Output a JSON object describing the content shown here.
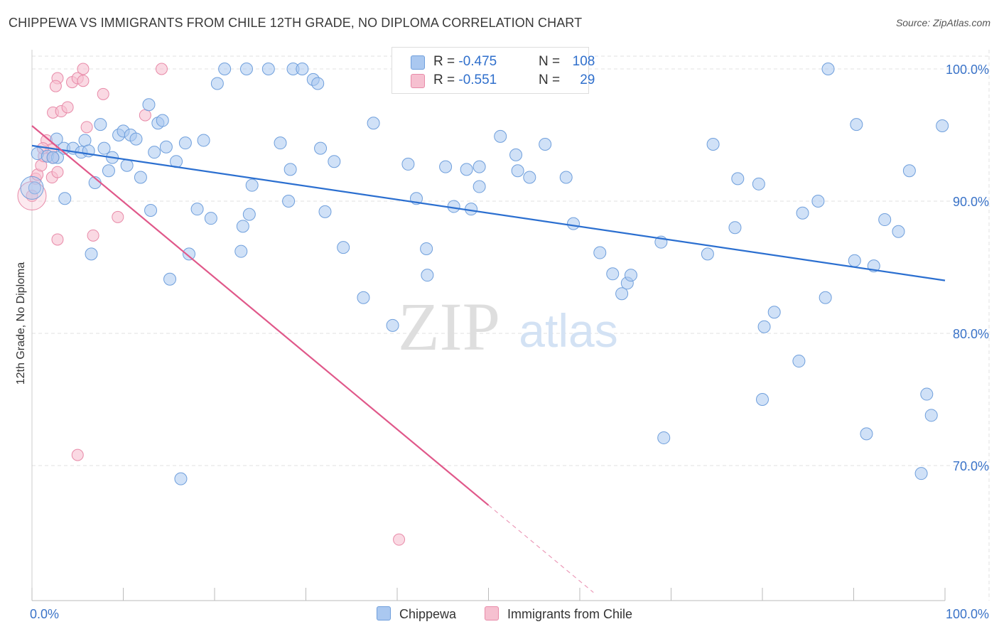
{
  "title": "CHIPPEWA VS IMMIGRANTS FROM CHILE 12TH GRADE, NO DIPLOMA CORRELATION CHART",
  "source": "Source: ZipAtlas.com",
  "watermark": {
    "zip": "ZIP",
    "atlas": "atlas"
  },
  "colors": {
    "blue_fill": "#aac8f0",
    "blue_stroke": "#6f9fdc",
    "blue_line": "#2b6fd0",
    "pink_fill": "#f6c0d0",
    "pink_stroke": "#e88aa8",
    "pink_line": "#e0588a",
    "axis_text": "#3a73c8",
    "grid": "#e2e2e2"
  },
  "legend_top": {
    "rows": [
      {
        "r_label": "R = ",
        "r_value": "-0.475",
        "n_label": "N = ",
        "n_value": "108"
      },
      {
        "r_label": "R = ",
        "r_value": "-0.551",
        "n_label": "N = ",
        "n_value": "29"
      }
    ]
  },
  "legend_bottom": [
    "Chippewa",
    "Immigrants from Chile"
  ],
  "chart_data": {
    "type": "scatter",
    "ylabel": "12th Grade, No Diploma",
    "x_tick_labels": [
      "0.0%",
      "100.0%"
    ],
    "y_tick_labels": [
      "100.0%",
      "90.0%",
      "80.0%",
      "70.0%"
    ],
    "xlim": [
      0,
      100
    ],
    "ylim": [
      60,
      101
    ],
    "y_ticks": [
      100,
      90,
      80,
      70
    ],
    "grid": true,
    "series": [
      {
        "name": "Chippewa",
        "color": "#aac8f0",
        "trend": {
          "x": [
            0,
            100
          ],
          "y": [
            94.2,
            84.0
          ]
        },
        "points": [
          [
            0.6,
            93.6
          ],
          [
            1.7,
            93.4
          ],
          [
            2.7,
            94.7
          ],
          [
            3.5,
            94.0
          ],
          [
            2.8,
            93.3
          ],
          [
            3.6,
            90.2
          ],
          [
            4.5,
            94.0
          ],
          [
            5.4,
            93.7
          ],
          [
            5.8,
            94.6
          ],
          [
            6.5,
            86.0
          ],
          [
            6.9,
            91.4
          ],
          [
            7.5,
            95.8
          ],
          [
            7.9,
            94.0
          ],
          [
            8.4,
            92.3
          ],
          [
            8.8,
            93.3
          ],
          [
            9.5,
            95.0
          ],
          [
            10.0,
            95.3
          ],
          [
            10.4,
            92.7
          ],
          [
            10.8,
            95.0
          ],
          [
            11.4,
            94.7
          ],
          [
            11.9,
            91.8
          ],
          [
            12.8,
            97.3
          ],
          [
            13.0,
            89.3
          ],
          [
            13.4,
            93.7
          ],
          [
            13.8,
            95.9
          ],
          [
            14.3,
            96.1
          ],
          [
            14.7,
            94.1
          ],
          [
            15.1,
            84.1
          ],
          [
            15.8,
            93.0
          ],
          [
            16.3,
            69.0
          ],
          [
            16.8,
            94.4
          ],
          [
            17.2,
            86.0
          ],
          [
            18.1,
            89.4
          ],
          [
            18.8,
            94.6
          ],
          [
            19.6,
            88.7
          ],
          [
            20.3,
            98.9
          ],
          [
            21.1,
            100.0
          ],
          [
            22.9,
            86.2
          ],
          [
            23.1,
            88.1
          ],
          [
            23.5,
            100.0
          ],
          [
            23.8,
            89.0
          ],
          [
            24.1,
            91.2
          ],
          [
            25.9,
            100.0
          ],
          [
            27.2,
            94.4
          ],
          [
            28.1,
            90.0
          ],
          [
            28.3,
            92.4
          ],
          [
            28.6,
            100.0
          ],
          [
            29.6,
            100.0
          ],
          [
            30.8,
            99.2
          ],
          [
            31.3,
            98.9
          ],
          [
            31.6,
            94.0
          ],
          [
            32.1,
            89.2
          ],
          [
            33.1,
            93.0
          ],
          [
            34.1,
            86.5
          ],
          [
            36.3,
            82.7
          ],
          [
            37.4,
            95.9
          ],
          [
            39.5,
            80.6
          ],
          [
            41.2,
            92.8
          ],
          [
            42.1,
            90.2
          ],
          [
            43.2,
            86.4
          ],
          [
            43.3,
            84.4
          ],
          [
            45.3,
            92.6
          ],
          [
            46.2,
            89.6
          ],
          [
            47.6,
            92.4
          ],
          [
            48.1,
            89.4
          ],
          [
            49.0,
            92.6
          ],
          [
            49.0,
            91.1
          ],
          [
            51.3,
            94.9
          ],
          [
            53.0,
            93.5
          ],
          [
            53.2,
            92.3
          ],
          [
            54.5,
            91.8
          ],
          [
            56.2,
            94.3
          ],
          [
            58.5,
            91.8
          ],
          [
            59.3,
            88.3
          ],
          [
            62.2,
            86.1
          ],
          [
            63.6,
            84.5
          ],
          [
            64.6,
            83.0
          ],
          [
            65.2,
            83.8
          ],
          [
            65.6,
            84.4
          ],
          [
            68.9,
            86.9
          ],
          [
            69.2,
            72.1
          ],
          [
            74.0,
            86.0
          ],
          [
            74.6,
            94.3
          ],
          [
            77.0,
            88.0
          ],
          [
            77.3,
            91.7
          ],
          [
            79.6,
            91.3
          ],
          [
            80.0,
            75.0
          ],
          [
            80.2,
            80.5
          ],
          [
            81.3,
            81.6
          ],
          [
            84.0,
            77.9
          ],
          [
            84.4,
            89.1
          ],
          [
            86.1,
            90.0
          ],
          [
            86.9,
            82.7
          ],
          [
            87.2,
            100.0
          ],
          [
            90.1,
            85.5
          ],
          [
            90.3,
            95.8
          ],
          [
            91.4,
            72.4
          ],
          [
            92.2,
            85.1
          ],
          [
            93.4,
            88.6
          ],
          [
            94.9,
            87.7
          ],
          [
            96.1,
            92.3
          ],
          [
            97.4,
            69.4
          ],
          [
            98.0,
            75.4
          ],
          [
            98.5,
            73.8
          ],
          [
            99.7,
            95.7
          ],
          [
            0.3,
            91.0
          ],
          [
            2.3,
            93.3
          ],
          [
            6.2,
            93.8
          ]
        ]
      },
      {
        "name": "Immigrants from Chile",
        "color": "#f6c0d0",
        "trend": {
          "x": [
            0,
            50
          ],
          "y": [
            95.7,
            67.0
          ]
        },
        "trend_dashed_extension": {
          "x": [
            50,
            61.5
          ],
          "y": [
            67.0,
            60.4
          ]
        },
        "points": [
          [
            0.0,
            90.4
          ],
          [
            0.4,
            91.7
          ],
          [
            0.6,
            92.0
          ],
          [
            1.0,
            92.7
          ],
          [
            1.3,
            93.4
          ],
          [
            1.6,
            94.6
          ],
          [
            2.1,
            93.9
          ],
          [
            2.3,
            93.3
          ],
          [
            2.2,
            91.8
          ],
          [
            2.8,
            92.2
          ],
          [
            2.3,
            96.7
          ],
          [
            2.8,
            99.3
          ],
          [
            2.6,
            98.7
          ],
          [
            3.2,
            96.8
          ],
          [
            3.9,
            97.1
          ],
          [
            4.4,
            99.0
          ],
          [
            5.0,
            99.3
          ],
          [
            5.6,
            99.1
          ],
          [
            5.6,
            100.0
          ],
          [
            6.0,
            95.6
          ],
          [
            6.7,
            87.4
          ],
          [
            7.8,
            98.1
          ],
          [
            9.4,
            88.8
          ],
          [
            12.4,
            96.5
          ],
          [
            14.2,
            100.0
          ],
          [
            2.8,
            87.1
          ],
          [
            5.0,
            70.8
          ],
          [
            40.2,
            64.4
          ],
          [
            1.2,
            94.0
          ]
        ]
      }
    ]
  }
}
